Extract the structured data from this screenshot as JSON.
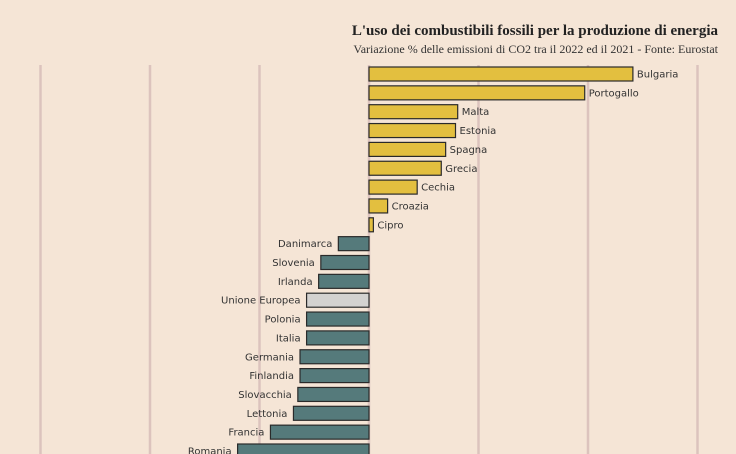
{
  "chart_data": {
    "type": "bar",
    "orientation": "horizontal",
    "title": "L'uso dei combustibili fossili per la produzione di energia",
    "subtitle": "Variazione % delle emissioni di CO2 tra il 2022 ed il 2021 - Fonte: Eurostat",
    "categories": [
      "Bulgaria",
      "Portogallo",
      "Malta",
      "Estonia",
      "Spagna",
      "Grecia",
      "Cechia",
      "Croazia",
      "Cipro",
      "Danimarca",
      "Slovenia",
      "Irlanda",
      "Unione Europea",
      "Polonia",
      "Italia",
      "Germania",
      "Finlandia",
      "Slovacchia",
      "Lettonia",
      "Francia",
      "Romania"
    ],
    "values": [
      24.1,
      19.7,
      8.1,
      7.9,
      7.0,
      6.6,
      4.4,
      1.7,
      0.4,
      -2.8,
      -4.4,
      -4.6,
      -5.7,
      -5.7,
      -5.7,
      -6.3,
      -6.3,
      -6.5,
      -6.9,
      -9.0,
      -12.0
    ],
    "xlim": [
      -30,
      30
    ],
    "grid_step": 10,
    "grid": true,
    "colors": {
      "positive": "#e3bf3f",
      "negative": "#557a7b",
      "highlight": "#d3d2d0",
      "grid": "#dcc3bd",
      "background": "#f5e5d6"
    },
    "highlight_category": "Unione Europea"
  }
}
